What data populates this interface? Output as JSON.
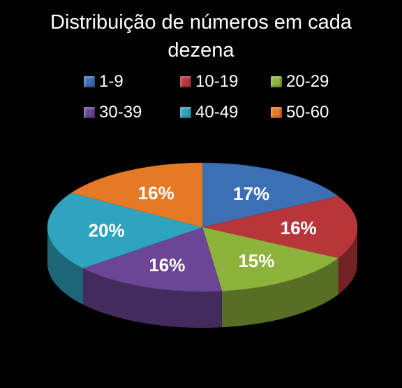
{
  "chart_data": {
    "type": "pie",
    "title": "Distribuição de números em cada dezena",
    "title_lines": [
      "Distribuição de números em cada",
      "dezena"
    ],
    "categories": [
      "1-9",
      "10-19",
      "20-29",
      "30-39",
      "40-49",
      "50-60"
    ],
    "values": [
      17,
      16,
      15,
      16,
      20,
      16
    ],
    "value_labels": [
      "17%",
      "16%",
      "15%",
      "16%",
      "20%",
      "16%"
    ],
    "colors": [
      "#3c6fb4",
      "#b8363a",
      "#8db33c",
      "#6c4596",
      "#2ea4bf",
      "#e67a24"
    ],
    "legend_position": "top",
    "style": "3d"
  }
}
